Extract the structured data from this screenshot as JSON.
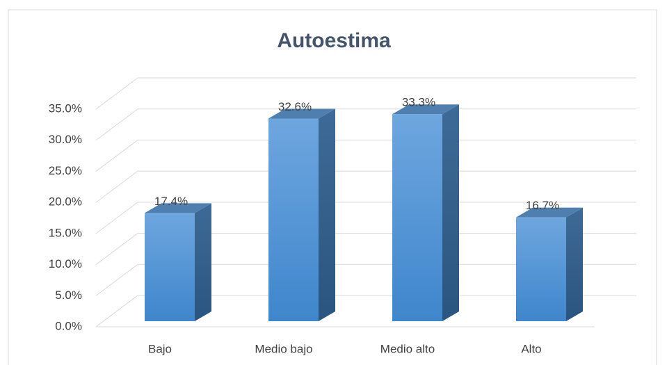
{
  "chart_data": {
    "type": "bar3d",
    "title": "Autoestima",
    "categories": [
      "Bajo",
      "Medio bajo",
      "Medio alto",
      "Alto"
    ],
    "values": [
      17.4,
      32.6,
      33.3,
      16.7
    ],
    "value_labels": [
      "17.4%",
      "32.6%",
      "33.3%",
      "16.7%"
    ],
    "color": "#5b9bd5",
    "ylim": [
      0,
      35
    ],
    "yticks": [
      {
        "value": 0,
        "label": "0.0%"
      },
      {
        "value": 5,
        "label": "5.0%"
      },
      {
        "value": 10,
        "label": "10.0%"
      },
      {
        "value": 15,
        "label": "15.0%"
      },
      {
        "value": 20,
        "label": "20.0%"
      },
      {
        "value": 25,
        "label": "25.0%"
      },
      {
        "value": 30,
        "label": "30.0%"
      },
      {
        "value": 35,
        "label": "35.0%"
      }
    ],
    "grid": true
  }
}
